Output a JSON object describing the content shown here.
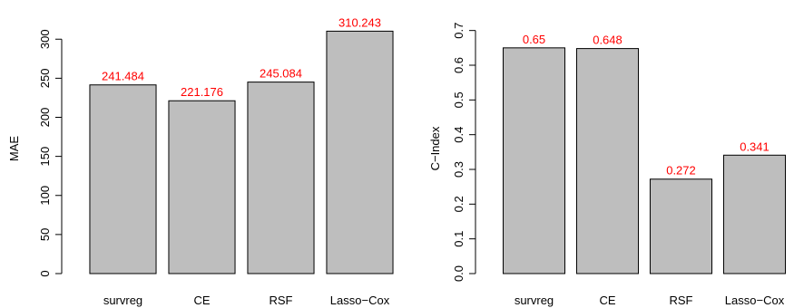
{
  "colors": {
    "bar_fill": "#bebebe",
    "bar_stroke": "#000000",
    "data_label": "#ff0000",
    "axis": "#000000"
  },
  "chart_data": [
    {
      "type": "bar",
      "categories": [
        "survreg",
        "CE",
        "RSF",
        "Lasso−Cox"
      ],
      "values": [
        241.484,
        221.176,
        245.084,
        310.243
      ],
      "value_labels": [
        "241.484",
        "221.176",
        "245.084",
        "310.243"
      ],
      "title": "",
      "xlabel": "",
      "ylabel": "MAE",
      "ylim": [
        0,
        320
      ],
      "yticks": [
        0,
        50,
        100,
        150,
        200,
        250,
        300
      ],
      "ytick_labels": [
        "0",
        "50",
        "100",
        "150",
        "200",
        "250",
        "300"
      ],
      "grid": false,
      "legend": "none"
    },
    {
      "type": "bar",
      "categories": [
        "survreg",
        "CE",
        "RSF",
        "Lasso−Cox"
      ],
      "values": [
        0.65,
        0.648,
        0.272,
        0.341
      ],
      "value_labels": [
        "0.65",
        "0.648",
        "0.272",
        "0.341"
      ],
      "title": "",
      "xlabel": "",
      "ylabel": "C−Index",
      "ylim": [
        0,
        0.72
      ],
      "yticks": [
        0.0,
        0.1,
        0.2,
        0.3,
        0.4,
        0.5,
        0.6,
        0.7
      ],
      "ytick_labels": [
        "0.0",
        "0.1",
        "0.2",
        "0.3",
        "0.4",
        "0.5",
        "0.6",
        "0.7"
      ],
      "grid": false,
      "legend": "none"
    }
  ]
}
